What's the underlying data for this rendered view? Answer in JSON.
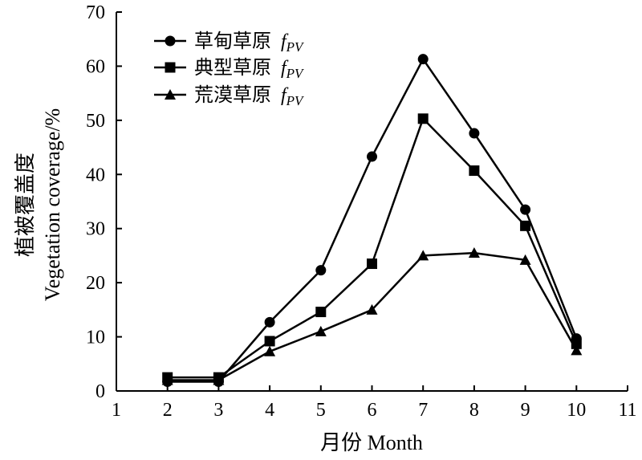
{
  "chart_data": {
    "type": "line",
    "xlabel": "月份 Month",
    "ylabel_cn": "植被覆盖度",
    "ylabel_en": "Vegetation coverage/%",
    "xlim": [
      1,
      11
    ],
    "ylim": [
      0,
      70
    ],
    "x_ticks": [
      "1",
      "2",
      "3",
      "4",
      "5",
      "6",
      "7",
      "8",
      "9",
      "10",
      "11"
    ],
    "y_ticks": [
      "0",
      "10",
      "20",
      "30",
      "40",
      "50",
      "60",
      "70"
    ],
    "legend_position": "top-left",
    "x": [
      2,
      3,
      4,
      5,
      6,
      7,
      8,
      9,
      10
    ],
    "series": [
      {
        "name_cn": "草甸草原",
        "name_suffix": "fPV",
        "marker": "circle",
        "values": [
          1.7,
          1.7,
          12.7,
          22.3,
          43.3,
          61.3,
          47.6,
          33.5,
          9.7
        ]
      },
      {
        "name_cn": "典型草原",
        "name_suffix": "fPV",
        "marker": "square",
        "values": [
          2.5,
          2.5,
          9.2,
          14.6,
          23.5,
          50.3,
          40.7,
          30.5,
          8.7
        ]
      },
      {
        "name_cn": "荒漠草原",
        "name_suffix": "fPV",
        "marker": "triangle",
        "values": [
          2.0,
          2.0,
          7.3,
          11.0,
          15.0,
          25.0,
          25.5,
          24.2,
          7.5
        ]
      }
    ]
  }
}
